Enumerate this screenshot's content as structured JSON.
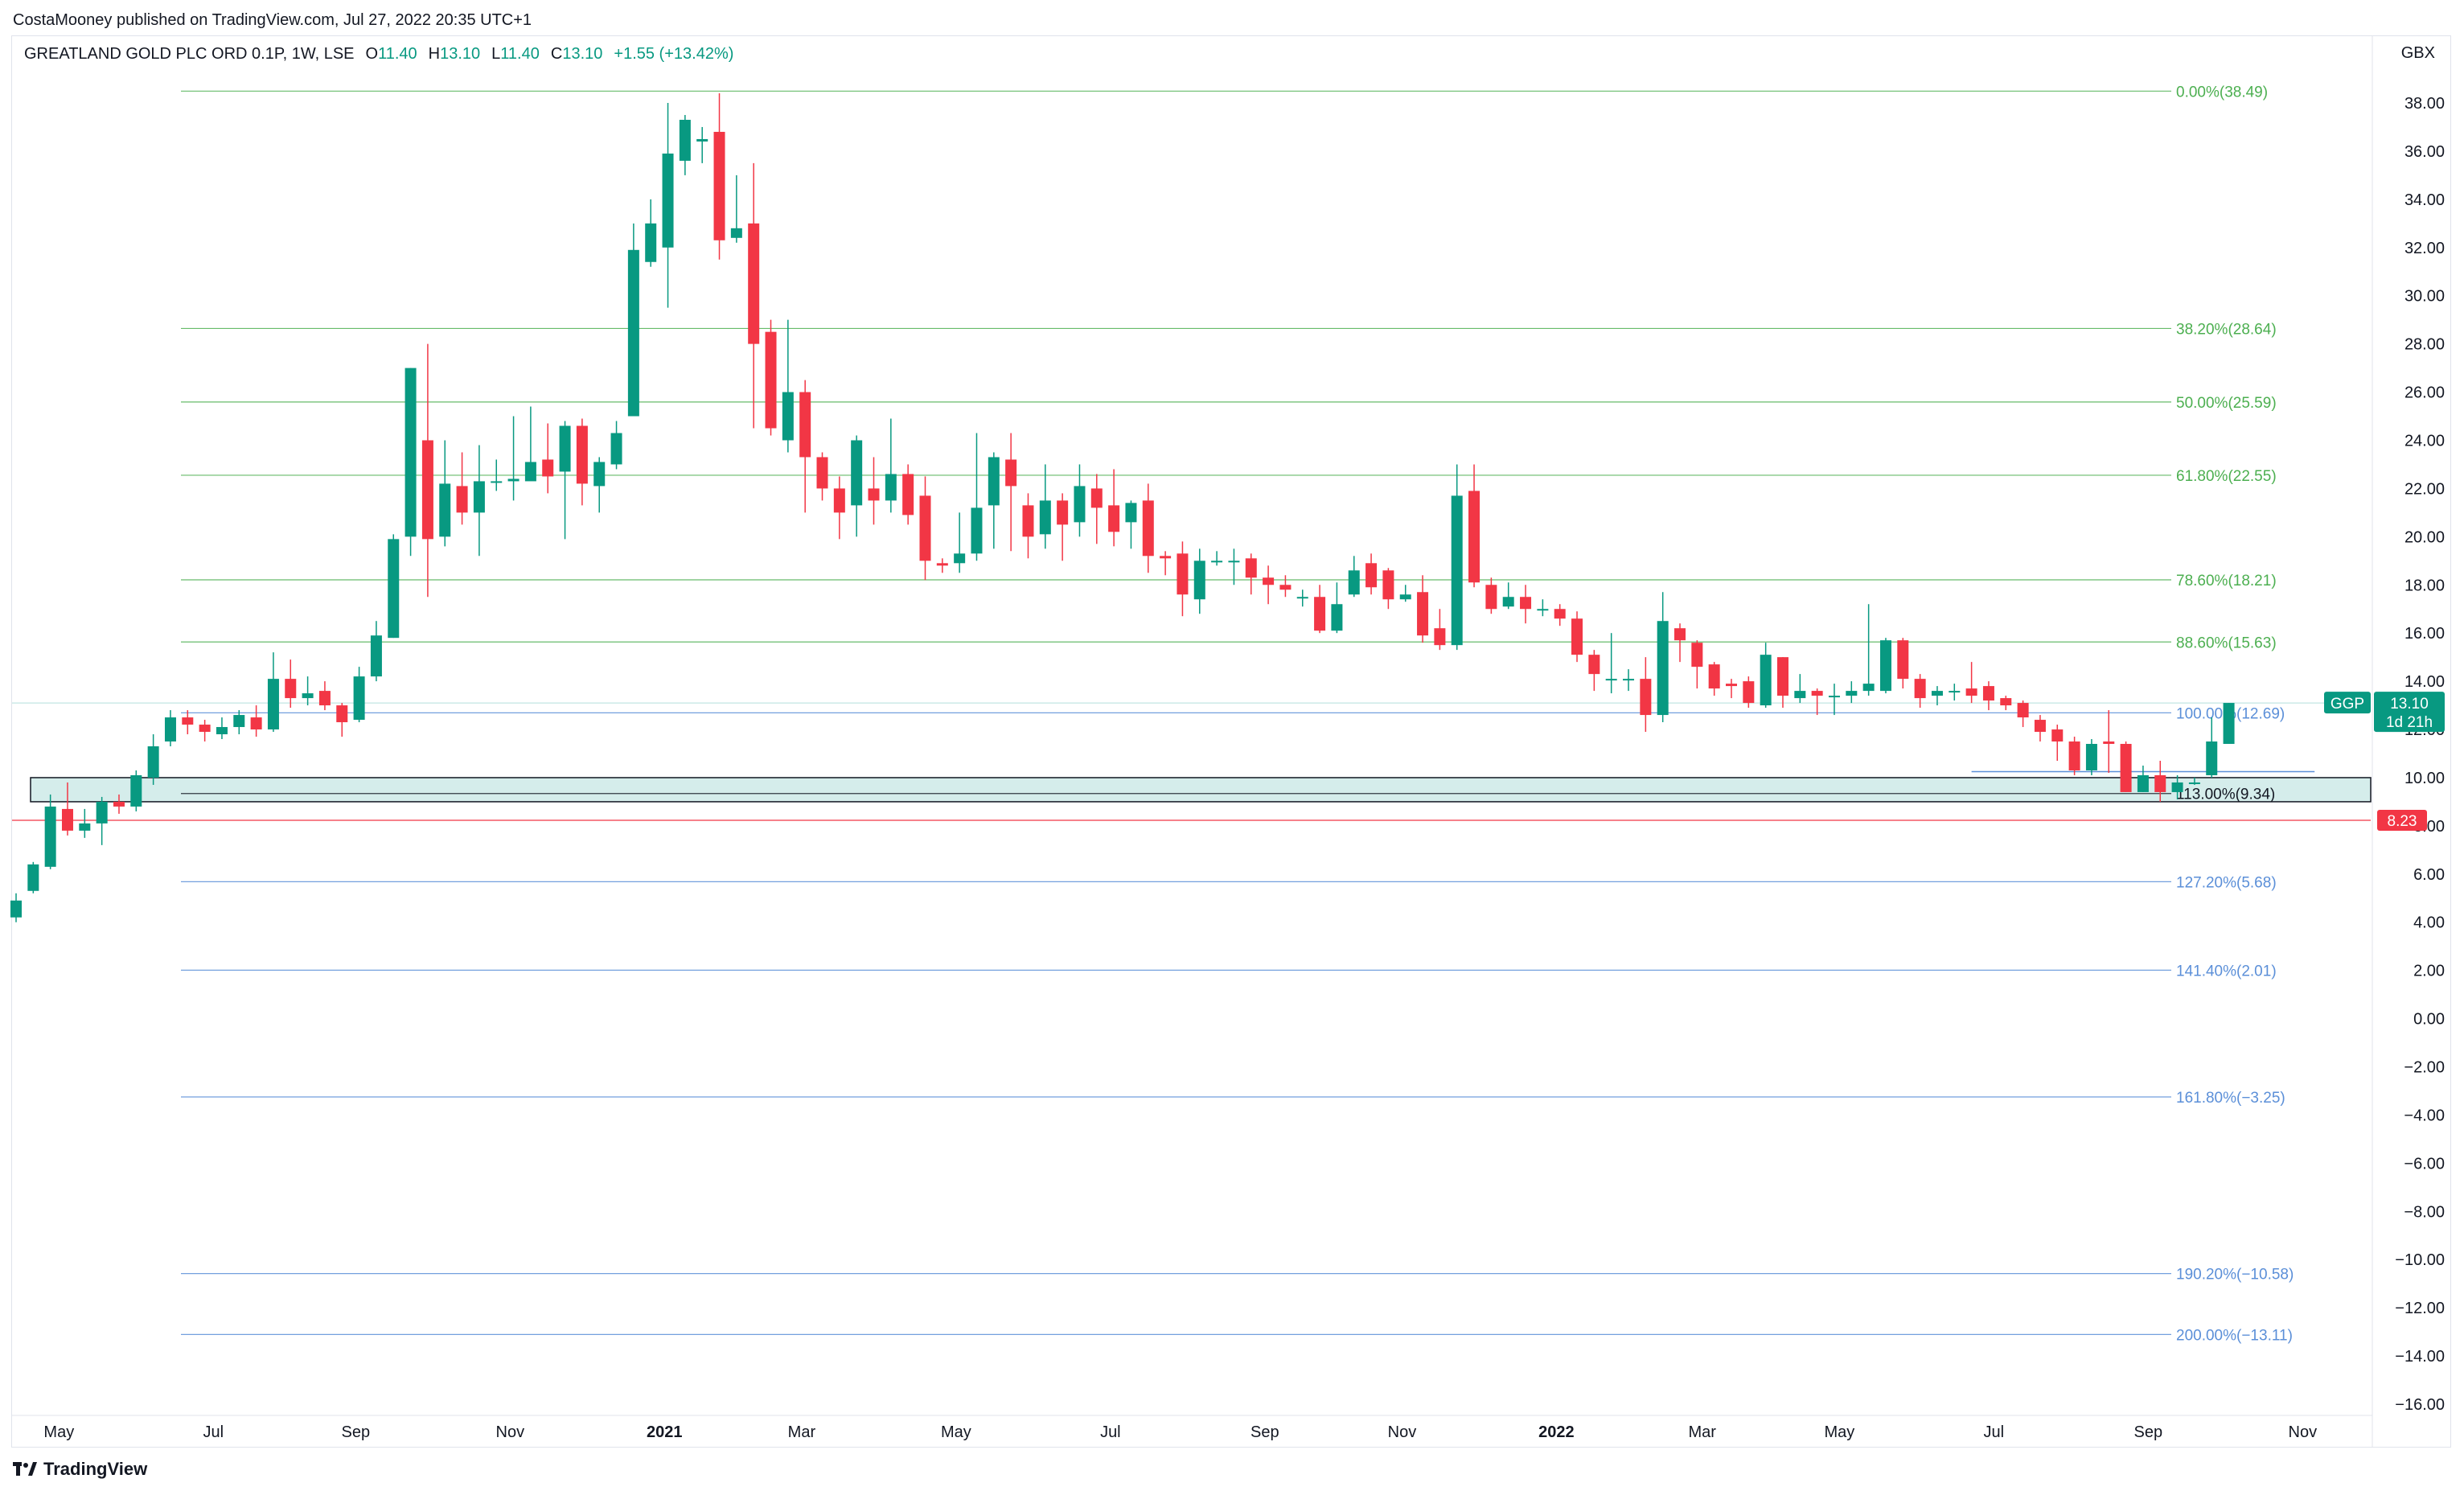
{
  "header": {
    "published": "CostaMooney published on TradingView.com, Jul 27, 2022 20:35 UTC+1"
  },
  "legend": {
    "symbol": "GREATLAND GOLD PLC ORD 0.1P, 1W, LSE",
    "o_label": "O",
    "o_value": "11.40",
    "h_label": "H",
    "h_value": "13.10",
    "l_label": "L",
    "l_value": "11.40",
    "c_label": "C",
    "c_value": "13.10",
    "change": "+1.55 (+13.42%)"
  },
  "footer": {
    "brand": "TradingView"
  },
  "colors": {
    "up": "#089981",
    "down": "#f23645",
    "fib_green": "#4caf50",
    "fib_blue": "#5b8fd8",
    "zone": "#b2dfdb"
  },
  "chart_data": {
    "type": "candlestick",
    "currency": "GBX",
    "ylim": [
      -17,
      38.6
    ],
    "y_ticks": [
      38,
      36,
      34,
      32,
      30,
      28,
      26,
      24,
      22,
      20,
      18,
      16,
      14,
      12,
      10,
      8,
      6,
      4,
      2,
      0,
      -2,
      -4,
      -6,
      -8,
      -10,
      -12,
      -14,
      -16
    ],
    "y_tick_labels": [
      "38.00",
      "36.00",
      "34.00",
      "32.00",
      "30.00",
      "28.00",
      "26.00",
      "24.00",
      "22.00",
      "20.00",
      "18.00",
      "16.00",
      "14.00",
      "12.00",
      "10.00",
      "8.00",
      "6.00",
      "4.00",
      "2.00",
      "0.00",
      "−2.00",
      "−4.00",
      "−6.00",
      "−8.00",
      "−10.00",
      "−12.00",
      "−14.00",
      "−16.00"
    ],
    "x_ticks": [
      {
        "label": "May",
        "week": 2.5,
        "bold": false
      },
      {
        "label": "Jul",
        "week": 11.5,
        "bold": false
      },
      {
        "label": "Sep",
        "week": 19.8,
        "bold": false
      },
      {
        "label": "Nov",
        "week": 28.8,
        "bold": false
      },
      {
        "label": "2021",
        "week": 37.8,
        "bold": true
      },
      {
        "label": "Mar",
        "week": 45.8,
        "bold": false
      },
      {
        "label": "May",
        "week": 54.8,
        "bold": false
      },
      {
        "label": "Jul",
        "week": 63.8,
        "bold": false
      },
      {
        "label": "Sep",
        "week": 72.8,
        "bold": false
      },
      {
        "label": "Nov",
        "week": 80.8,
        "bold": false
      },
      {
        "label": "2022",
        "week": 89.8,
        "bold": true
      },
      {
        "label": "Mar",
        "week": 98.3,
        "bold": false
      },
      {
        "label": "May",
        "week": 106.3,
        "bold": false
      },
      {
        "label": "Jul",
        "week": 115.3,
        "bold": false
      },
      {
        "label": "Sep",
        "week": 124.3,
        "bold": false
      },
      {
        "label": "Nov",
        "week": 133.3,
        "bold": false
      }
    ],
    "candles": [
      [
        4.2,
        4.9,
        4.0,
        5.2
      ],
      [
        5.3,
        6.4,
        5.2,
        6.5
      ],
      [
        6.3,
        8.8,
        6.2,
        9.3
      ],
      [
        8.7,
        7.8,
        7.6,
        9.8
      ],
      [
        7.8,
        8.1,
        7.5,
        8.7
      ],
      [
        8.1,
        9.0,
        7.2,
        9.2
      ],
      [
        9.0,
        8.8,
        8.5,
        9.3
      ],
      [
        8.8,
        10.1,
        8.6,
        10.3
      ],
      [
        10.0,
        11.3,
        9.7,
        11.8
      ],
      [
        11.5,
        12.5,
        11.3,
        12.8
      ],
      [
        12.5,
        12.2,
        11.8,
        12.8
      ],
      [
        12.2,
        11.9,
        11.5,
        12.4
      ],
      [
        11.8,
        12.1,
        11.6,
        12.5
      ],
      [
        12.1,
        12.6,
        11.8,
        12.8
      ],
      [
        12.5,
        12.0,
        11.7,
        13.0
      ],
      [
        12.0,
        14.1,
        11.9,
        15.2
      ],
      [
        14.1,
        13.3,
        12.9,
        14.9
      ],
      [
        13.3,
        13.5,
        13.0,
        14.2
      ],
      [
        13.6,
        13.0,
        12.8,
        14.0
      ],
      [
        13.0,
        12.3,
        11.7,
        13.1
      ],
      [
        12.4,
        14.2,
        12.3,
        14.6
      ],
      [
        14.2,
        15.9,
        14.0,
        16.5
      ],
      [
        15.8,
        19.9,
        15.8,
        20.1
      ],
      [
        20.0,
        27.0,
        19.2,
        27.0
      ],
      [
        24.0,
        19.9,
        17.5,
        28.0
      ],
      [
        20.0,
        22.2,
        19.6,
        24.0
      ],
      [
        22.1,
        21.0,
        20.5,
        23.5
      ],
      [
        21.0,
        22.3,
        19.2,
        23.8
      ],
      [
        22.3,
        22.3,
        21.9,
        23.2
      ],
      [
        22.3,
        22.4,
        21.5,
        25.0
      ],
      [
        22.3,
        23.1,
        22.5,
        25.4
      ],
      [
        23.2,
        22.5,
        21.8,
        24.7
      ],
      [
        22.7,
        24.6,
        19.9,
        24.8
      ],
      [
        24.6,
        22.2,
        21.3,
        24.9
      ],
      [
        22.1,
        23.1,
        21.0,
        23.3
      ],
      [
        23.0,
        24.3,
        22.8,
        24.8
      ],
      [
        25.0,
        31.9,
        25.5,
        33.0
      ],
      [
        31.4,
        33.0,
        31.2,
        34.0
      ],
      [
        32.0,
        35.9,
        29.5,
        38.0
      ],
      [
        35.6,
        37.3,
        35.0,
        37.5
      ],
      [
        36.4,
        36.5,
        35.5,
        37.0
      ],
      [
        36.8,
        32.3,
        31.5,
        38.4
      ],
      [
        32.4,
        32.8,
        32.2,
        35.0
      ],
      [
        33.0,
        28.0,
        24.5,
        35.5
      ],
      [
        28.5,
        24.5,
        24.2,
        29.0
      ],
      [
        24.0,
        26.0,
        23.5,
        29.0
      ],
      [
        26.0,
        23.3,
        21.0,
        26.5
      ],
      [
        23.3,
        22.0,
        21.5,
        23.5
      ],
      [
        22.0,
        21.0,
        19.9,
        22.5
      ],
      [
        21.3,
        24.0,
        20.0,
        24.2
      ],
      [
        22.0,
        21.5,
        20.5,
        23.3
      ],
      [
        21.5,
        22.6,
        21.0,
        24.9
      ],
      [
        22.6,
        20.9,
        20.5,
        23.0
      ],
      [
        21.7,
        19.0,
        18.2,
        22.5
      ],
      [
        18.9,
        18.8,
        18.5,
        19.1
      ],
      [
        18.9,
        19.3,
        18.5,
        21.0
      ],
      [
        19.3,
        21.2,
        19.0,
        24.3
      ],
      [
        21.3,
        23.3,
        19.5,
        23.5
      ],
      [
        23.2,
        22.1,
        19.4,
        24.3
      ],
      [
        21.3,
        20.0,
        19.1,
        21.8
      ],
      [
        20.1,
        21.5,
        19.5,
        23.0
      ],
      [
        21.5,
        20.5,
        19.0,
        21.8
      ],
      [
        20.6,
        22.1,
        20.0,
        23.0
      ],
      [
        22.0,
        21.2,
        19.7,
        22.6
      ],
      [
        21.3,
        20.2,
        19.6,
        22.8
      ],
      [
        20.6,
        21.4,
        19.5,
        21.5
      ],
      [
        21.5,
        19.2,
        18.5,
        22.2
      ],
      [
        19.2,
        19.1,
        18.4,
        19.4
      ],
      [
        19.3,
        17.6,
        16.7,
        19.8
      ],
      [
        17.4,
        19.0,
        16.8,
        19.5
      ],
      [
        19.0,
        19.0,
        18.8,
        19.4
      ],
      [
        19.0,
        19.0,
        18.0,
        19.5
      ],
      [
        19.1,
        18.3,
        17.6,
        19.3
      ],
      [
        18.3,
        18.0,
        17.2,
        18.8
      ],
      [
        18.0,
        17.8,
        17.5,
        18.4
      ],
      [
        17.5,
        17.5,
        17.1,
        17.8
      ],
      [
        17.5,
        16.1,
        16.0,
        18.0
      ],
      [
        16.1,
        17.2,
        16.0,
        18.1
      ],
      [
        17.6,
        18.6,
        17.5,
        19.2
      ],
      [
        18.9,
        17.9,
        17.6,
        19.3
      ],
      [
        18.6,
        17.4,
        17.0,
        18.7
      ],
      [
        17.4,
        17.6,
        17.3,
        18.0
      ],
      [
        17.7,
        15.9,
        15.6,
        18.4
      ],
      [
        16.2,
        15.5,
        15.3,
        17.0
      ],
      [
        15.5,
        21.7,
        15.3,
        23.0
      ],
      [
        21.9,
        18.1,
        17.9,
        23.0
      ],
      [
        18.0,
        17.0,
        16.8,
        18.3
      ],
      [
        17.1,
        17.5,
        17.0,
        18.1
      ],
      [
        17.5,
        17.0,
        16.4,
        18.0
      ],
      [
        17.0,
        17.0,
        16.7,
        17.4
      ],
      [
        17.0,
        16.6,
        16.3,
        17.2
      ],
      [
        16.6,
        15.1,
        14.8,
        16.9
      ],
      [
        15.1,
        14.3,
        13.6,
        15.3
      ],
      [
        14.1,
        14.1,
        13.5,
        16.0
      ],
      [
        14.1,
        14.1,
        13.6,
        14.5
      ],
      [
        14.1,
        12.6,
        11.9,
        15.0
      ],
      [
        12.6,
        16.5,
        12.3,
        17.7
      ],
      [
        16.2,
        15.7,
        14.8,
        16.4
      ],
      [
        15.6,
        14.6,
        13.7,
        15.7
      ],
      [
        14.7,
        13.7,
        13.4,
        14.8
      ],
      [
        13.9,
        13.8,
        13.3,
        14.1
      ],
      [
        14.0,
        13.1,
        12.9,
        14.2
      ],
      [
        13.0,
        15.1,
        12.9,
        15.6
      ],
      [
        15.0,
        13.4,
        12.9,
        15.0
      ],
      [
        13.3,
        13.6,
        13.1,
        14.3
      ],
      [
        13.6,
        13.4,
        12.6,
        13.7
      ],
      [
        13.4,
        13.4,
        12.6,
        13.9
      ],
      [
        13.4,
        13.6,
        13.1,
        14.0
      ],
      [
        13.6,
        13.9,
        13.4,
        17.2
      ],
      [
        13.6,
        15.7,
        13.5,
        15.8
      ],
      [
        15.7,
        14.1,
        13.7,
        15.8
      ],
      [
        14.1,
        13.3,
        12.9,
        14.3
      ],
      [
        13.4,
        13.6,
        13.0,
        13.8
      ],
      [
        13.6,
        13.6,
        13.2,
        13.9
      ],
      [
        13.7,
        13.4,
        13.1,
        14.8
      ],
      [
        13.8,
        13.2,
        12.8,
        14.0
      ],
      [
        13.3,
        13.0,
        12.8,
        13.4
      ],
      [
        13.1,
        12.5,
        12.1,
        13.2
      ],
      [
        12.4,
        11.9,
        11.5,
        12.6
      ],
      [
        12.0,
        11.5,
        10.7,
        12.2
      ],
      [
        11.5,
        10.3,
        10.1,
        11.7
      ],
      [
        10.3,
        11.4,
        10.1,
        11.6
      ],
      [
        11.5,
        11.4,
        10.2,
        12.8
      ],
      [
        11.4,
        9.4,
        9.4,
        11.5
      ],
      [
        9.4,
        10.1,
        9.4,
        10.5
      ],
      [
        10.1,
        9.4,
        9.0,
        10.7
      ],
      [
        9.4,
        9.8,
        9.1,
        10.1
      ],
      [
        9.8,
        9.8,
        9.7,
        10.0
      ],
      [
        10.1,
        11.5,
        10.0,
        12.5
      ],
      [
        11.4,
        13.1,
        11.4,
        13.1
      ]
    ],
    "fib_levels": [
      {
        "label": "0.00%(38.49)",
        "value": 38.49,
        "color": "green"
      },
      {
        "label": "38.20%(28.64)",
        "value": 28.64,
        "color": "green"
      },
      {
        "label": "50.00%(25.59)",
        "value": 25.59,
        "color": "green"
      },
      {
        "label": "61.80%(22.55)",
        "value": 22.55,
        "color": "green"
      },
      {
        "label": "78.60%(18.21)",
        "value": 18.21,
        "color": "green"
      },
      {
        "label": "88.60%(15.63)",
        "value": 15.63,
        "color": "green"
      },
      {
        "label": "100.00%(12.69)",
        "value": 12.69,
        "color": "blue"
      },
      {
        "label": "113.00%(9.34)",
        "value": 9.34,
        "color": "black"
      },
      {
        "label": "127.20%(5.68)",
        "value": 5.68,
        "color": "blue"
      },
      {
        "label": "141.40%(2.01)",
        "value": 2.01,
        "color": "blue"
      },
      {
        "label": "161.80%(−3.25)",
        "value": -3.25,
        "color": "blue"
      },
      {
        "label": "190.20%(−10.58)",
        "value": -10.58,
        "color": "blue"
      },
      {
        "label": "200.00%(−13.11)",
        "value": -13.11,
        "color": "blue"
      }
    ],
    "zone": {
      "low": 9.0,
      "high": 10.0
    },
    "support_line": {
      "value": 8.23,
      "label": "8.23"
    },
    "short_line": {
      "value": 10.25,
      "from_week": 114,
      "to_week": 134
    },
    "faint_line": {
      "value": 13.1
    },
    "price_tag": {
      "ticker": "GGP",
      "value": "13.10",
      "countdown": "1d 21h",
      "level": 13.1
    }
  }
}
